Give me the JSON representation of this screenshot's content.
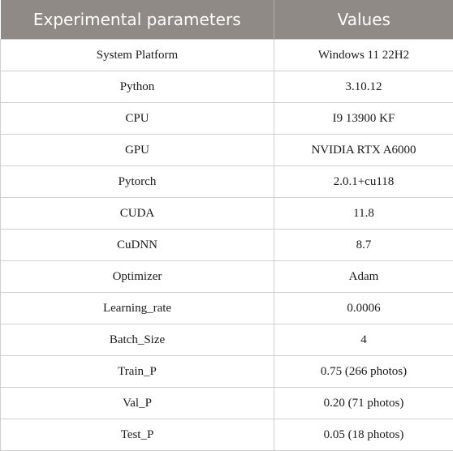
{
  "table": {
    "headers": [
      "Experimental parameters",
      "Values"
    ],
    "rows": [
      [
        "System Platform",
        "Windows 11 22H2"
      ],
      [
        "Python",
        "3.10.12"
      ],
      [
        "CPU",
        "I9 13900 KF"
      ],
      [
        "GPU",
        "NVIDIA RTX A6000"
      ],
      [
        "Pytorch",
        "2.0.1+cu118"
      ],
      [
        "CUDA",
        "11.8"
      ],
      [
        "CuDNN",
        "8.7"
      ],
      [
        "Optimizer",
        "Adam"
      ],
      [
        "Learning_rate",
        "0.0006"
      ],
      [
        "Batch_Size",
        "4"
      ],
      [
        "Train_P",
        "0.75 (266 photos)"
      ],
      [
        "Val_P",
        "0.20 (71 photos)"
      ],
      [
        "Test_P",
        "0.05 (18 photos)"
      ]
    ]
  },
  "colors": {
    "header_bg": "#8f8a86",
    "header_text": "#ffffff",
    "grid": "#cfcfcf"
  }
}
